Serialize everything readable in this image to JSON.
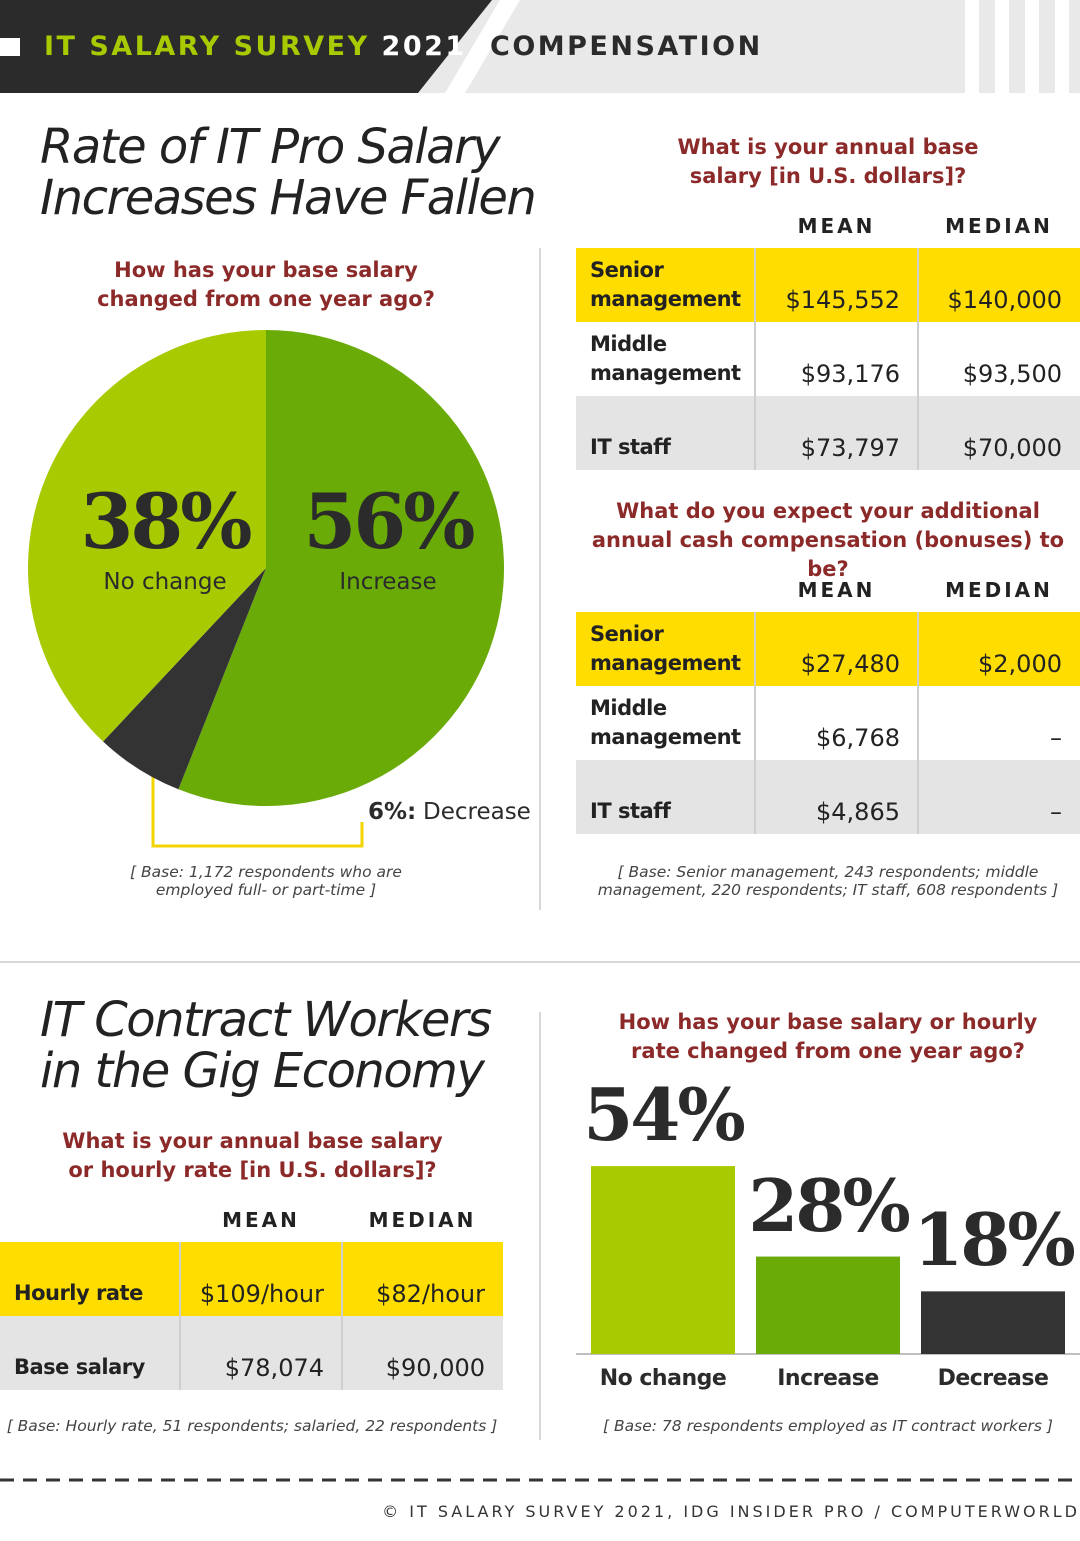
{
  "header": {
    "survey": "IT SALARY SURVEY",
    "year": "2021",
    "section": "COMPENSATION"
  },
  "section1": {
    "title": "Rate of IT Pro Salary Increases Have Fallen",
    "base_salary_table": {
      "question": "What is your annual base salary [in U.S. dollars]?",
      "columns": [
        "MEAN",
        "MEDIAN"
      ],
      "rows": [
        {
          "label": "Senior management",
          "mean": "$145,552",
          "median": "$140,000"
        },
        {
          "label": "Middle management",
          "mean": "$93,176",
          "median": "$93,500"
        },
        {
          "label": "IT staff",
          "mean": "$73,797",
          "median": "$70,000"
        }
      ]
    },
    "bonus_table": {
      "question": "What do you expect your additional annual cash compensation (bonuses) to be?",
      "columns": [
        "MEAN",
        "MEDIAN"
      ],
      "rows": [
        {
          "label": "Senior management",
          "mean": "$27,480",
          "median": "$2,000"
        },
        {
          "label": "Middle management",
          "mean": "$6,768",
          "median": "–"
        },
        {
          "label": "IT staff",
          "mean": "$4,865",
          "median": "–"
        }
      ],
      "note": "[ Base: Senior management, 243 respondents; middle management, 220 respondents; IT staff, 608 respondents ]"
    }
  },
  "section2": {
    "title": "IT Contract Workers in the Gig Economy",
    "rate_table": {
      "question": "What is your annual base salary or hourly rate [in U.S. dollars]?",
      "columns": [
        "MEAN",
        "MEDIAN"
      ],
      "rows": [
        {
          "label": "Hourly rate",
          "mean": "$109/hour",
          "median": "$82/hour"
        },
        {
          "label": "Base salary",
          "mean": "$78,074",
          "median": "$90,000"
        }
      ],
      "note": "[ Base: Hourly rate, 51 respondents; salaried, 22 respondents ]"
    }
  },
  "chart_data": [
    {
      "type": "pie",
      "title": "How has your base salary changed from one year ago?",
      "categories": [
        "Increase",
        "Decrease",
        "No change"
      ],
      "values": [
        56,
        6,
        38
      ],
      "value_labels": [
        "56%",
        "6%:",
        "38%"
      ],
      "colors": [
        "#6aab08",
        "#333333",
        "#a7cb00"
      ],
      "note": "[ Base: 1,172 respondents who are employed full- or part-time ]"
    },
    {
      "type": "bar",
      "title": "How has your base salary or hourly rate changed from one year ago?",
      "categories": [
        "No change",
        "Increase",
        "Decrease"
      ],
      "values": [
        54,
        28,
        18
      ],
      "value_labels": [
        "54%",
        "28%",
        "18%"
      ],
      "colors": [
        "#a7cb00",
        "#6aab08",
        "#333333"
      ],
      "note": "[ Base: 78 respondents employed as IT contract workers ]"
    }
  ],
  "footer": "© IT SALARY SURVEY 2021, IDG INSIDER PRO / COMPUTERWORLD"
}
